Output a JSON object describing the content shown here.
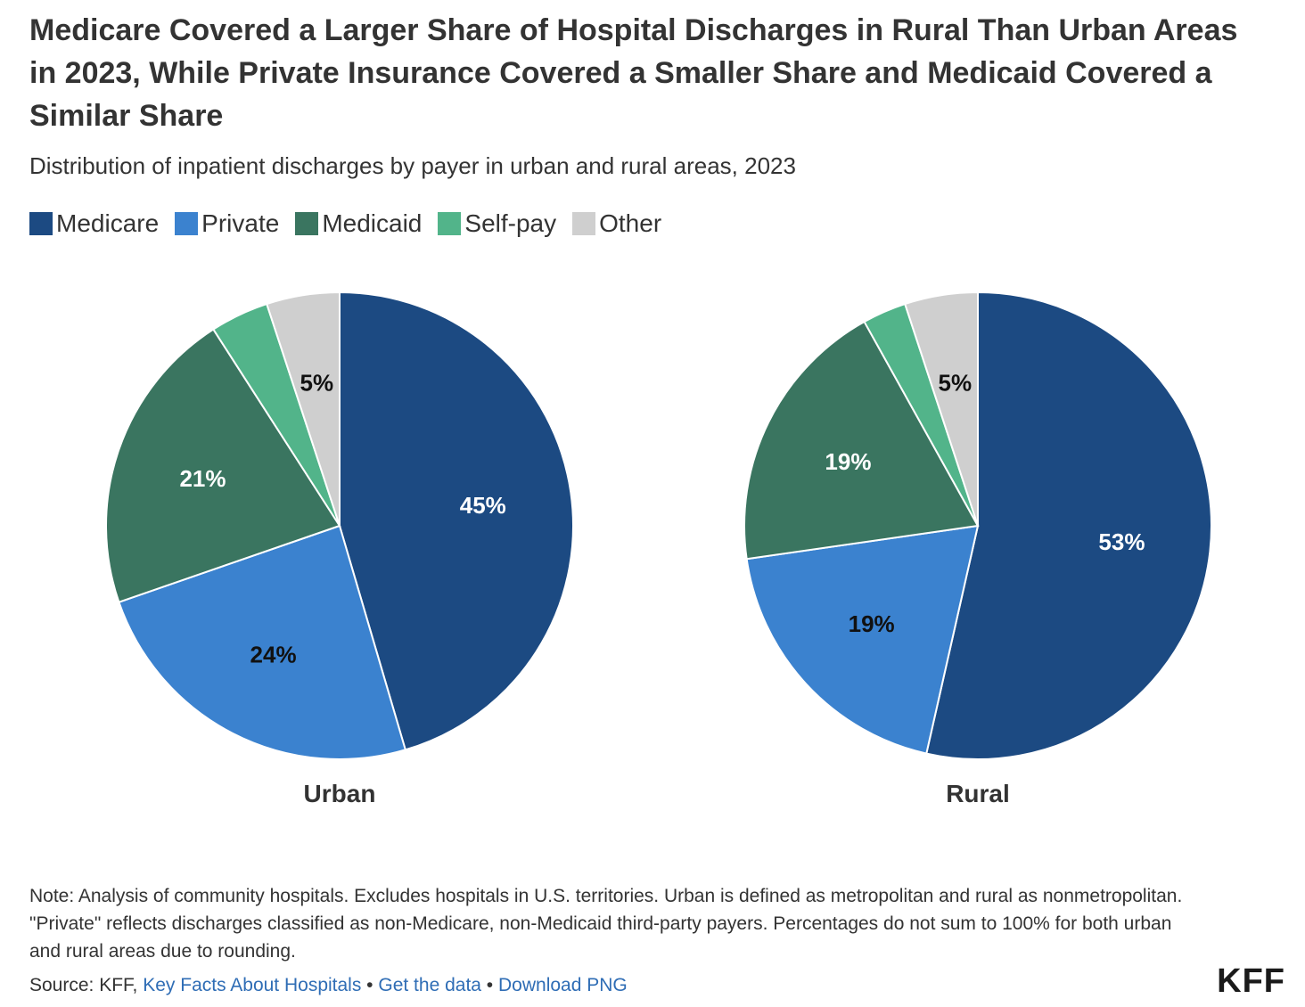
{
  "title": "Medicare Covered a Larger Share of Hospital Discharges in Rural Than Urban Areas in 2023, While Private Insurance Covered a Smaller Share and Medicaid Covered a Similar Share",
  "subtitle": "Distribution of inpatient discharges by payer in urban and rural areas, 2023",
  "colors": {
    "Medicare": "#1c4a82",
    "Private": "#3b82cf",
    "Medicaid": "#3a7560",
    "Self-pay": "#52b48a",
    "Other": "#cfcfcf"
  },
  "legend": [
    {
      "label": "Medicare",
      "color": "#1c4a82"
    },
    {
      "label": "Private",
      "color": "#3b82cf"
    },
    {
      "label": "Medicaid",
      "color": "#3a7560"
    },
    {
      "label": "Self-pay",
      "color": "#52b48a"
    },
    {
      "label": "Other",
      "color": "#cfcfcf"
    }
  ],
  "chart_data": [
    {
      "type": "pie",
      "title": "Urban",
      "categories": [
        "Medicare",
        "Private",
        "Medicaid",
        "Self-pay",
        "Other"
      ],
      "values": [
        45,
        24,
        21,
        4,
        5
      ],
      "data_labels": [
        "45%",
        "24%",
        "21%",
        "",
        "5%"
      ],
      "legend_position": "top-left"
    },
    {
      "type": "pie",
      "title": "Rural",
      "categories": [
        "Medicare",
        "Private",
        "Medicaid",
        "Self-pay",
        "Other"
      ],
      "values": [
        53,
        19,
        19,
        3,
        5
      ],
      "data_labels": [
        "53%",
        "19%",
        "19%",
        "",
        "5%"
      ],
      "legend_position": "top-left"
    }
  ],
  "note": "Note: Analysis of community hospitals. Excludes hospitals in U.S. territories. Urban is defined as metropolitan and rural as nonmetropolitan. \"Private\" reflects discharges classified as non-Medicare, non-Medicaid third-party payers. Percentages do not sum to 100% for both urban and rural areas due to rounding.",
  "source": {
    "prefix": "Source: KFF, ",
    "link1": "Key Facts About Hospitals",
    "separator": " • ",
    "link2": "Get the data",
    "link3": "Download PNG"
  },
  "logo": "KFF"
}
